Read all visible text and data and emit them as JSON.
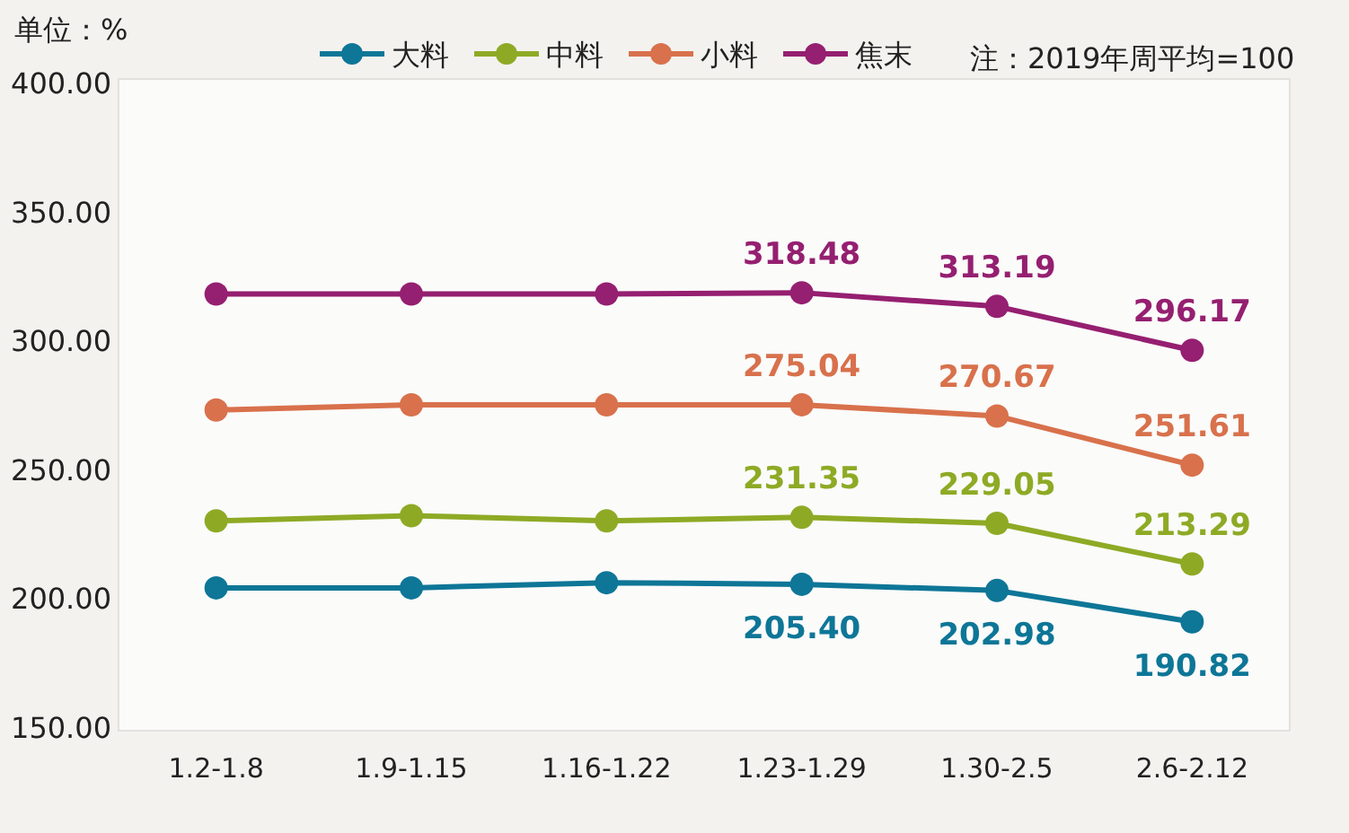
{
  "chart_data": {
    "type": "line",
    "ylabel": "单位：%",
    "annotations": [
      "注：2019年周平均=100"
    ],
    "categories": [
      "1.2-1.8",
      "1.9-1.15",
      "1.16-1.22",
      "1.23-1.29",
      "1.30-2.5",
      "2.6-2.12"
    ],
    "ylim": [
      150,
      400
    ],
    "yticks": [
      {
        "value": 150,
        "label": "150.00"
      },
      {
        "value": 200,
        "label": "200.00"
      },
      {
        "value": 250,
        "label": "250.00"
      },
      {
        "value": 300,
        "label": "300.00"
      },
      {
        "value": 350,
        "label": "350.00"
      },
      {
        "value": 400,
        "label": "400.00"
      }
    ],
    "series": [
      {
        "name": "大料",
        "color": "#0e7697",
        "values": [
          204,
          204,
          206,
          205.4,
          202.98,
          190.82
        ],
        "value_labels": [
          null,
          null,
          null,
          "205.40",
          "202.98",
          "190.82"
        ]
      },
      {
        "name": "中料",
        "color": "#8eaa25",
        "values": [
          230,
          232,
          230,
          231.35,
          229.05,
          213.29
        ],
        "value_labels": [
          null,
          null,
          null,
          "231.35",
          "229.05",
          "213.29"
        ]
      },
      {
        "name": "小料",
        "color": "#d8714c",
        "values": [
          273,
          275,
          275,
          275.04,
          270.67,
          251.61
        ],
        "value_labels": [
          null,
          null,
          null,
          "275.04",
          "270.67",
          "251.61"
        ]
      },
      {
        "name": "焦末",
        "color": "#951f70",
        "values": [
          318,
          318,
          318,
          318.48,
          313.19,
          296.17
        ],
        "value_labels": [
          null,
          null,
          null,
          "318.48",
          "313.19",
          "296.17"
        ]
      }
    ],
    "marker": "circle",
    "line_style": "solid",
    "legend": "top",
    "grid": false
  }
}
